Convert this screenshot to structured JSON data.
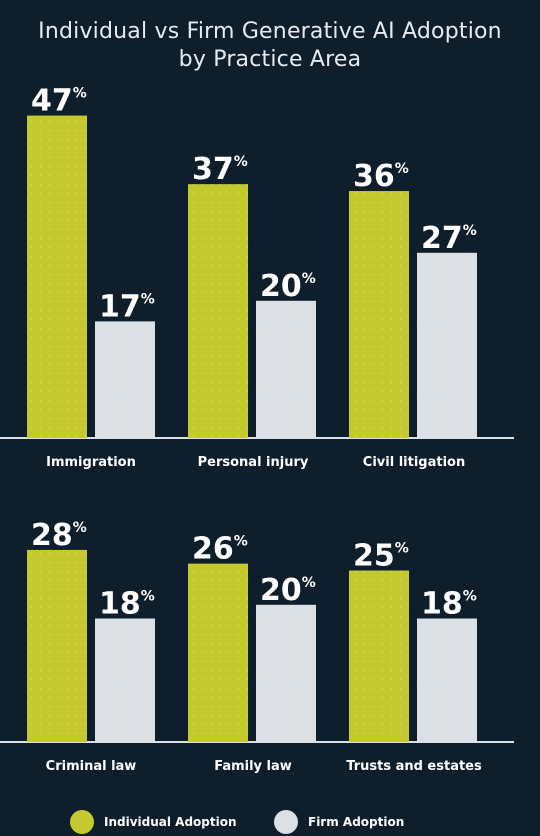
{
  "colors": {
    "individual": "#c3c92e",
    "firm": "#dbe0e5",
    "background": "#0e1e2b",
    "axis": "#dbe0e5"
  },
  "chart_data": {
    "type": "bar",
    "title": [
      "Individual vs Firm Generative AI Adoption",
      "by Practice Area"
    ],
    "unit": "%",
    "series": [
      {
        "name": "Individual Adoption",
        "values": [
          47,
          37,
          36,
          28,
          26,
          25
        ]
      },
      {
        "name": "Firm Adoption",
        "values": [
          17,
          20,
          27,
          18,
          20,
          18
        ]
      }
    ],
    "categories": [
      "Immigration",
      "Personal injury",
      "Civil litigation",
      "Criminal law",
      "Family law",
      "Trusts and estates"
    ],
    "panels": [
      {
        "categories": [
          0,
          1,
          2
        ]
      },
      {
        "categories": [
          3,
          4,
          5
        ]
      }
    ],
    "legend": "bottom",
    "grid": false
  }
}
